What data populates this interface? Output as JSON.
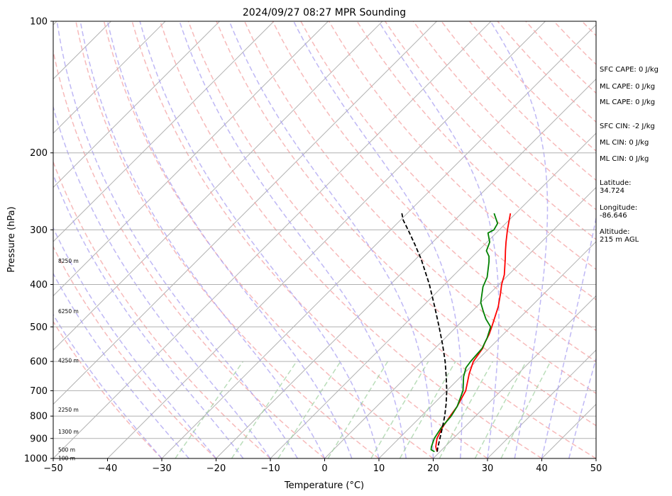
{
  "chart_data": {
    "type": "line",
    "title": "2024/09/27 08:27 MPR Sounding",
    "xlabel": "Temperature (°C)",
    "ylabel": "Pressure (hPa)",
    "xlim": [
      -50,
      50
    ],
    "ylim": [
      1000,
      100
    ],
    "y_scale": "log",
    "grid": true,
    "x_ticks": [
      -50,
      -40,
      -30,
      -20,
      -10,
      0,
      10,
      20,
      30,
      40,
      50
    ],
    "y_ticks": [
      100,
      200,
      300,
      400,
      500,
      600,
      700,
      800,
      900,
      1000
    ],
    "height_labels": [
      {
        "label": "8250 m",
        "pressure": 353
      },
      {
        "label": "6250 m",
        "pressure": 460
      },
      {
        "label": "4250 m",
        "pressure": 596
      },
      {
        "label": "2250 m",
        "pressure": 773
      },
      {
        "label": "1300 m",
        "pressure": 868
      },
      {
        "label": "500 m",
        "pressure": 954
      },
      {
        "label": "100 m",
        "pressure": 999
      }
    ],
    "series": [
      {
        "color": "#ff0000",
        "points": [
          [
            19.5,
            965
          ],
          [
            19.0,
            955
          ],
          [
            18.3,
            940
          ],
          [
            17.0,
            900
          ],
          [
            16.0,
            850
          ],
          [
            15.3,
            800
          ],
          [
            14.8,
            760
          ],
          [
            13.5,
            700
          ],
          [
            11.0,
            640
          ],
          [
            9.5,
            600
          ],
          [
            8.8,
            560
          ],
          [
            8.2,
            545
          ],
          [
            7.4,
            520
          ],
          [
            6.5,
            500
          ],
          [
            4.0,
            450
          ],
          [
            2.0,
            420
          ],
          [
            0.5,
            400
          ],
          [
            -0.8,
            380
          ],
          [
            -3.5,
            350
          ],
          [
            -5.0,
            335
          ],
          [
            -6.5,
            320
          ],
          [
            -8.5,
            300
          ],
          [
            -11.0,
            275
          ]
        ]
      },
      {
        "color": "#008000",
        "points": [
          [
            19.0,
            965
          ],
          [
            18.0,
            955
          ],
          [
            17.5,
            940
          ],
          [
            16.5,
            900
          ],
          [
            15.8,
            850
          ],
          [
            15.5,
            800
          ],
          [
            14.8,
            760
          ],
          [
            13.0,
            700
          ],
          [
            10.5,
            650
          ],
          [
            9.3,
            620
          ],
          [
            9.0,
            600
          ],
          [
            8.7,
            560
          ],
          [
            7.7,
            530
          ],
          [
            6.3,
            500
          ],
          [
            4.0,
            480
          ],
          [
            2.0,
            460
          ],
          [
            0.0,
            440
          ],
          [
            -2.5,
            405
          ],
          [
            -3.5,
            385
          ],
          [
            -6.0,
            355
          ],
          [
            -7.0,
            345
          ],
          [
            -8.5,
            335
          ],
          [
            -9.5,
            320
          ],
          [
            -11.5,
            305
          ],
          [
            -11.0,
            300
          ],
          [
            -11.5,
            290
          ],
          [
            -14.0,
            275
          ]
        ]
      },
      {
        "color": "#000000",
        "points": [
          [
            19.5,
            965
          ],
          [
            19.0,
            950
          ],
          [
            16.0,
            850
          ],
          [
            14.3,
            800
          ],
          [
            12.3,
            750
          ],
          [
            10.0,
            700
          ],
          [
            7.3,
            650
          ],
          [
            4.3,
            600
          ],
          [
            0.8,
            550
          ],
          [
            -3.2,
            500
          ],
          [
            -7.7,
            450
          ],
          [
            -12.8,
            400
          ],
          [
            -15.8,
            375
          ],
          [
            -19.0,
            350
          ],
          [
            -22.7,
            325
          ],
          [
            -26.8,
            300
          ],
          [
            -29.5,
            285
          ],
          [
            -31.0,
            275
          ]
        ]
      }
    ]
  },
  "info": {
    "sfc_cape": "SFC CAPE: 0 J/kg",
    "ml_cape_1": "ML CAPE: 0 J/kg",
    "ml_cape_2": "ML CAPE: 0 J/kg",
    "sfc_cin": "SFC CIN: -2 J/kg",
    "ml_cin_1": "ML CIN: 0 J/kg",
    "ml_cin_2": "ML CIN: 0 J/kg",
    "latitude": "Latitude:\n34.724",
    "longitude": "Longitude:\n-86.646",
    "altitude": "Altitude:\n215 m AGL"
  }
}
